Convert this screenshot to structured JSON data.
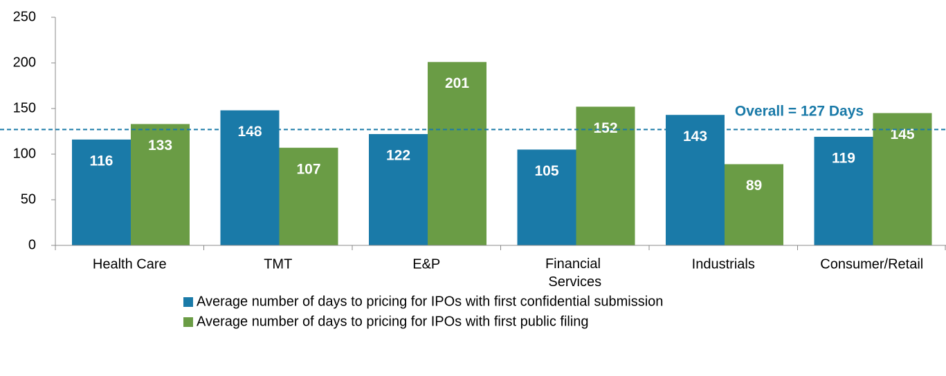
{
  "chart_data": {
    "type": "bar",
    "categories": [
      "Health Care",
      "TMT",
      "E&P",
      "Financial Services",
      "Industrials",
      "Consumer/Retail"
    ],
    "series": [
      {
        "name": "Average number of days to pricing for IPOs with first confidential submission",
        "color": "#1a7aa8",
        "values": [
          116,
          148,
          122,
          105,
          143,
          119
        ]
      },
      {
        "name": "Average number of days to pricing for IPOs with first public filing",
        "color": "#6a9c45",
        "values": [
          133,
          107,
          201,
          152,
          89,
          145
        ]
      }
    ],
    "ylim": [
      0,
      250
    ],
    "yticks": [
      0,
      50,
      100,
      150,
      200,
      250
    ],
    "reference_line": {
      "value": 127,
      "label": "Overall = 127 Days",
      "color": "#1a7aa8"
    },
    "legend": "bottom"
  }
}
